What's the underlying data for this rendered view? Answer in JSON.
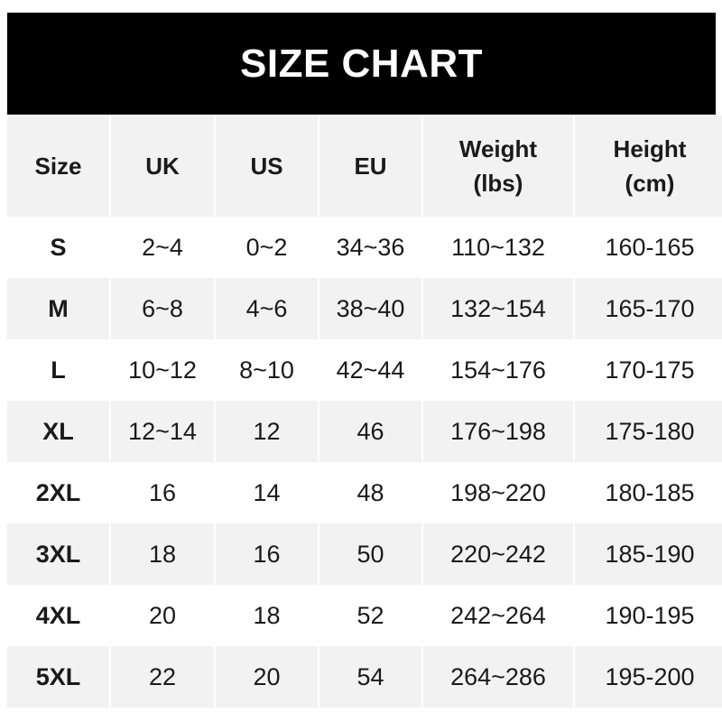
{
  "title": "SIZE CHART",
  "headers": [
    "Size",
    "UK",
    "US",
    "EU",
    "Weight\n(lbs)",
    "Height\n(cm)"
  ],
  "rows": [
    [
      "S",
      "2~4",
      "0~2",
      "34~36",
      "110~132",
      "160-165"
    ],
    [
      "M",
      "6~8",
      "4~6",
      "38~40",
      "132~154",
      "165-170"
    ],
    [
      "L",
      "10~12",
      "8~10",
      "42~44",
      "154~176",
      "170-175"
    ],
    [
      "XL",
      "12~14",
      "12",
      "46",
      "176~198",
      "175-180"
    ],
    [
      "2XL",
      "16",
      "14",
      "48",
      "198~220",
      "180-185"
    ],
    [
      "3XL",
      "18",
      "16",
      "50",
      "220~242",
      "185-190"
    ],
    [
      "4XL",
      "20",
      "18",
      "52",
      "242~264",
      "190-195"
    ],
    [
      "5XL",
      "22",
      "20",
      "54",
      "264~286",
      "195-200"
    ]
  ],
  "colors": {
    "title_bg": "#000000",
    "title_text": "#ffffff",
    "stripe": "#f2f2f2"
  }
}
